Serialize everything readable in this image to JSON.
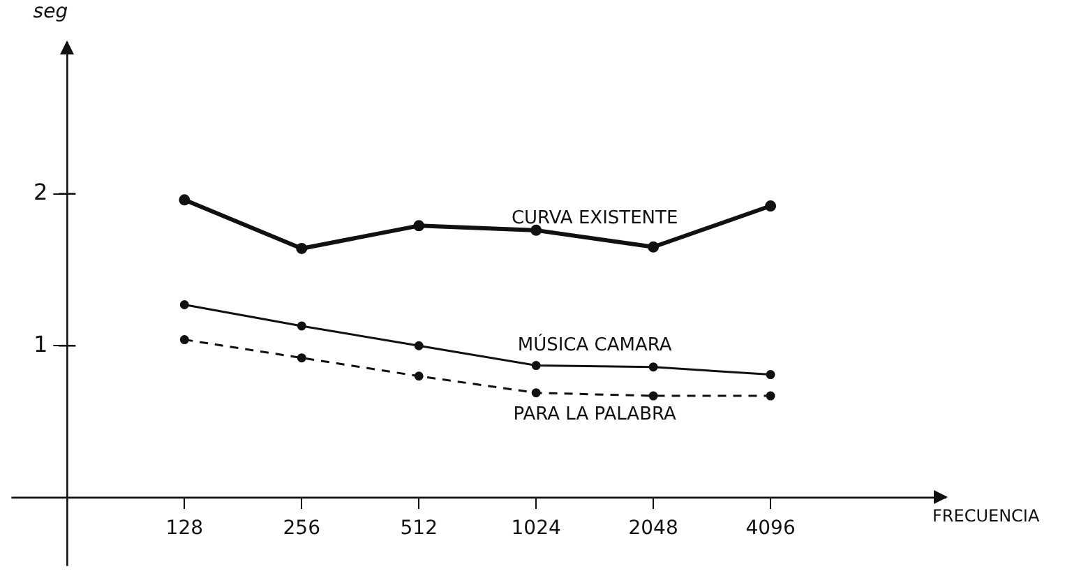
{
  "chart_data": {
    "type": "line",
    "annotations": [
      "FRECUENCIA"
    ],
    "ylabel": "seg",
    "categories": [
      "128",
      "256",
      "512",
      "1024",
      "2048",
      "4096"
    ],
    "series": [
      {
        "name": "CURVA EXISTENTE",
        "color": "#111111",
        "values": [
          1.96,
          1.64,
          1.79,
          1.76,
          1.65,
          1.92
        ]
      },
      {
        "name": "MÚSICA CAMARA",
        "color": "#111111",
        "values": [
          1.27,
          1.13,
          1.0,
          0.87,
          0.86,
          0.81
        ]
      },
      {
        "name": "PARA LA PALABRA",
        "color": "#111111",
        "line_style": "dashed",
        "values": [
          1.04,
          0.92,
          0.8,
          0.69,
          0.67,
          0.67
        ]
      }
    ],
    "ylim": [
      -0.45,
      3
    ],
    "yticks": [
      1,
      2
    ],
    "grid": false,
    "legend": false,
    "marker": "circle",
    "line_style": "solid"
  }
}
